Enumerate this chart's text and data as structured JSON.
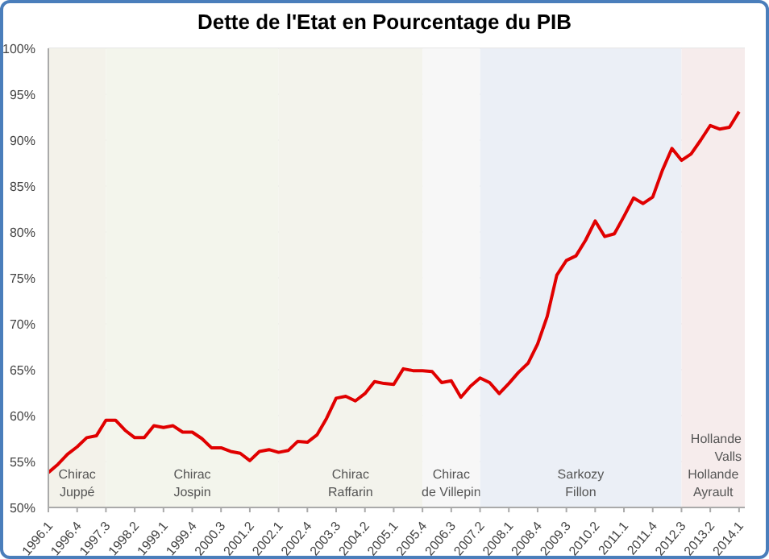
{
  "chart_data": {
    "type": "line",
    "title": "Dette de l'Etat en Pourcentage du PIB",
    "categories": [
      "1996.1",
      null,
      null,
      "1996.4",
      null,
      null,
      "1997.3",
      null,
      null,
      "1998.2",
      null,
      null,
      "1999.1",
      null,
      null,
      "1999.4",
      null,
      null,
      "2000.3",
      null,
      null,
      "2001.2",
      null,
      null,
      "2002.1",
      null,
      null,
      "2002.4",
      null,
      null,
      "2003.3",
      null,
      null,
      "2004.2",
      null,
      null,
      "2005.1",
      null,
      null,
      "2005.4",
      null,
      null,
      "2006.3",
      null,
      null,
      "2007.2",
      null,
      null,
      "2008.1",
      null,
      null,
      "2008.4",
      null,
      null,
      "2009.3",
      null,
      null,
      "2010.2",
      null,
      null,
      "2011.1",
      null,
      null,
      "2011.4",
      null,
      null,
      "2012.3",
      null,
      null,
      "2013.2",
      null,
      null,
      "2014.1"
    ],
    "series": [
      {
        "color": "#e00000",
        "values": [
          53.8,
          54.7,
          55.8,
          56.6,
          57.6,
          57.8,
          59.5,
          59.5,
          58.4,
          57.6,
          57.6,
          58.9,
          58.7,
          58.9,
          58.2,
          58.2,
          57.5,
          56.5,
          56.5,
          56.1,
          55.9,
          55.1,
          56.1,
          56.3,
          56.0,
          56.2,
          57.2,
          57.1,
          57.9,
          59.7,
          61.9,
          62.1,
          61.6,
          62.4,
          63.7,
          63.5,
          63.4,
          65.1,
          64.9,
          64.9,
          64.8,
          63.6,
          63.8,
          62.0,
          63.2,
          64.1,
          63.6,
          62.4,
          63.5,
          64.7,
          65.7,
          67.8,
          70.8,
          75.3,
          76.9,
          77.4,
          79.1,
          81.2,
          79.5,
          79.8,
          81.7,
          83.7,
          83.1,
          83.8,
          86.7,
          89.1,
          87.8,
          88.5,
          90.0,
          91.6,
          91.2,
          91.4,
          93.1
        ]
      }
    ],
    "ylim": [
      50,
      100
    ],
    "yticks": [
      {
        "value": 50,
        "label": "50%"
      },
      {
        "value": 55,
        "label": "55%"
      },
      {
        "value": 60,
        "label": "60%"
      },
      {
        "value": 65,
        "label": "65%"
      },
      {
        "value": 70,
        "label": "70%"
      },
      {
        "value": 75,
        "label": "75%"
      },
      {
        "value": 80,
        "label": "80%"
      },
      {
        "value": 85,
        "label": "85%"
      },
      {
        "value": 90,
        "label": "90%"
      },
      {
        "value": 95,
        "label": "95%"
      },
      {
        "value": 100,
        "label": "100%"
      }
    ],
    "bands": [
      {
        "axis": "x",
        "from": "1996.1",
        "to": "1997.3",
        "label": "Chirac\nJuppé",
        "color": "#f3f2ea"
      },
      {
        "axis": "x",
        "from": "1997.3",
        "to": "2002.1",
        "label": "Chirac\nJospin",
        "color": "#f3f5ec"
      },
      {
        "axis": "x",
        "from": "2002.1",
        "to": "2005.4",
        "label": "Chirac\nRaffarin",
        "color": "#f3f3ec"
      },
      {
        "axis": "x",
        "from": "2005.4",
        "to": "2007.2",
        "label": "Chirac\nde Villepin",
        "color": "#f7f7f7"
      },
      {
        "axis": "x",
        "from": "2007.2",
        "to": "2012.3",
        "label": "Sarkozy\nFillon",
        "color": "#ebeff6"
      },
      {
        "axis": "x",
        "from": "2012.3",
        "to": "2014.1",
        "label": "Hollande\nAyrault",
        "color": "#f6ecec"
      }
    ],
    "annotations": [
      "Hollande\nValls"
    ],
    "grid": "y",
    "marker": "none",
    "line_style": "solid"
  }
}
